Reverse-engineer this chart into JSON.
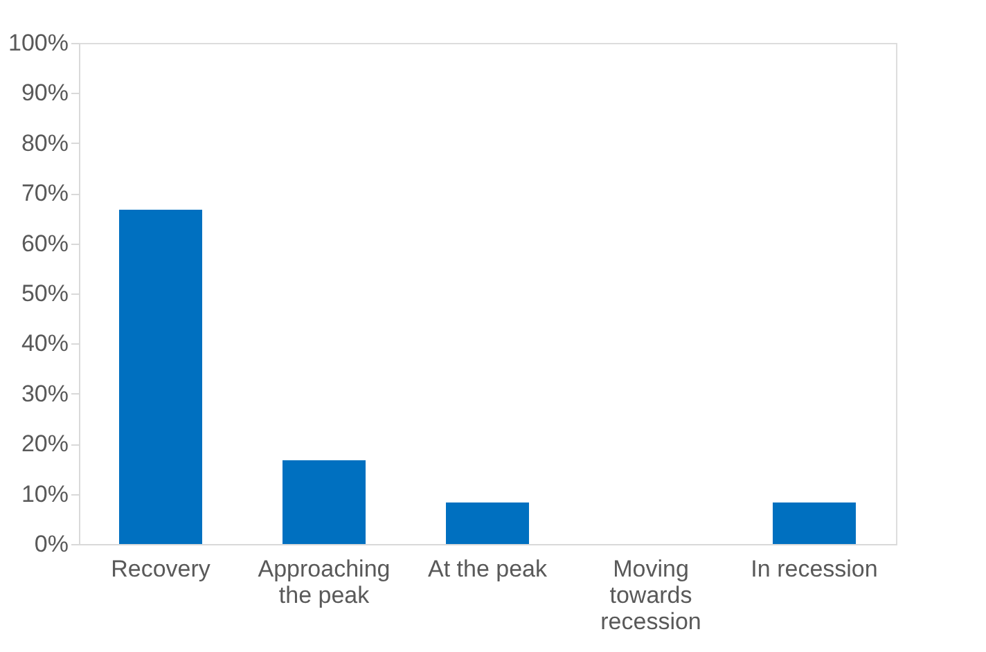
{
  "chart_data": {
    "type": "bar",
    "categories": [
      "Recovery",
      "Approaching the peak",
      "At the peak",
      "Moving towards recession",
      "In recession"
    ],
    "values": [
      66.7,
      16.7,
      8.3,
      0,
      8.3
    ],
    "color": "#0070c0",
    "ylim": [
      0,
      100
    ],
    "yticks": [
      {
        "value": 0,
        "label": "0%"
      },
      {
        "value": 10,
        "label": "10%"
      },
      {
        "value": 20,
        "label": "20%"
      },
      {
        "value": 30,
        "label": "30%"
      },
      {
        "value": 40,
        "label": "40%"
      },
      {
        "value": 50,
        "label": "50%"
      },
      {
        "value": 60,
        "label": "60%"
      },
      {
        "value": 70,
        "label": "70%"
      },
      {
        "value": 80,
        "label": "80%"
      },
      {
        "value": 90,
        "label": "90%"
      },
      {
        "value": 100,
        "label": "100%"
      }
    ],
    "grid": false
  }
}
